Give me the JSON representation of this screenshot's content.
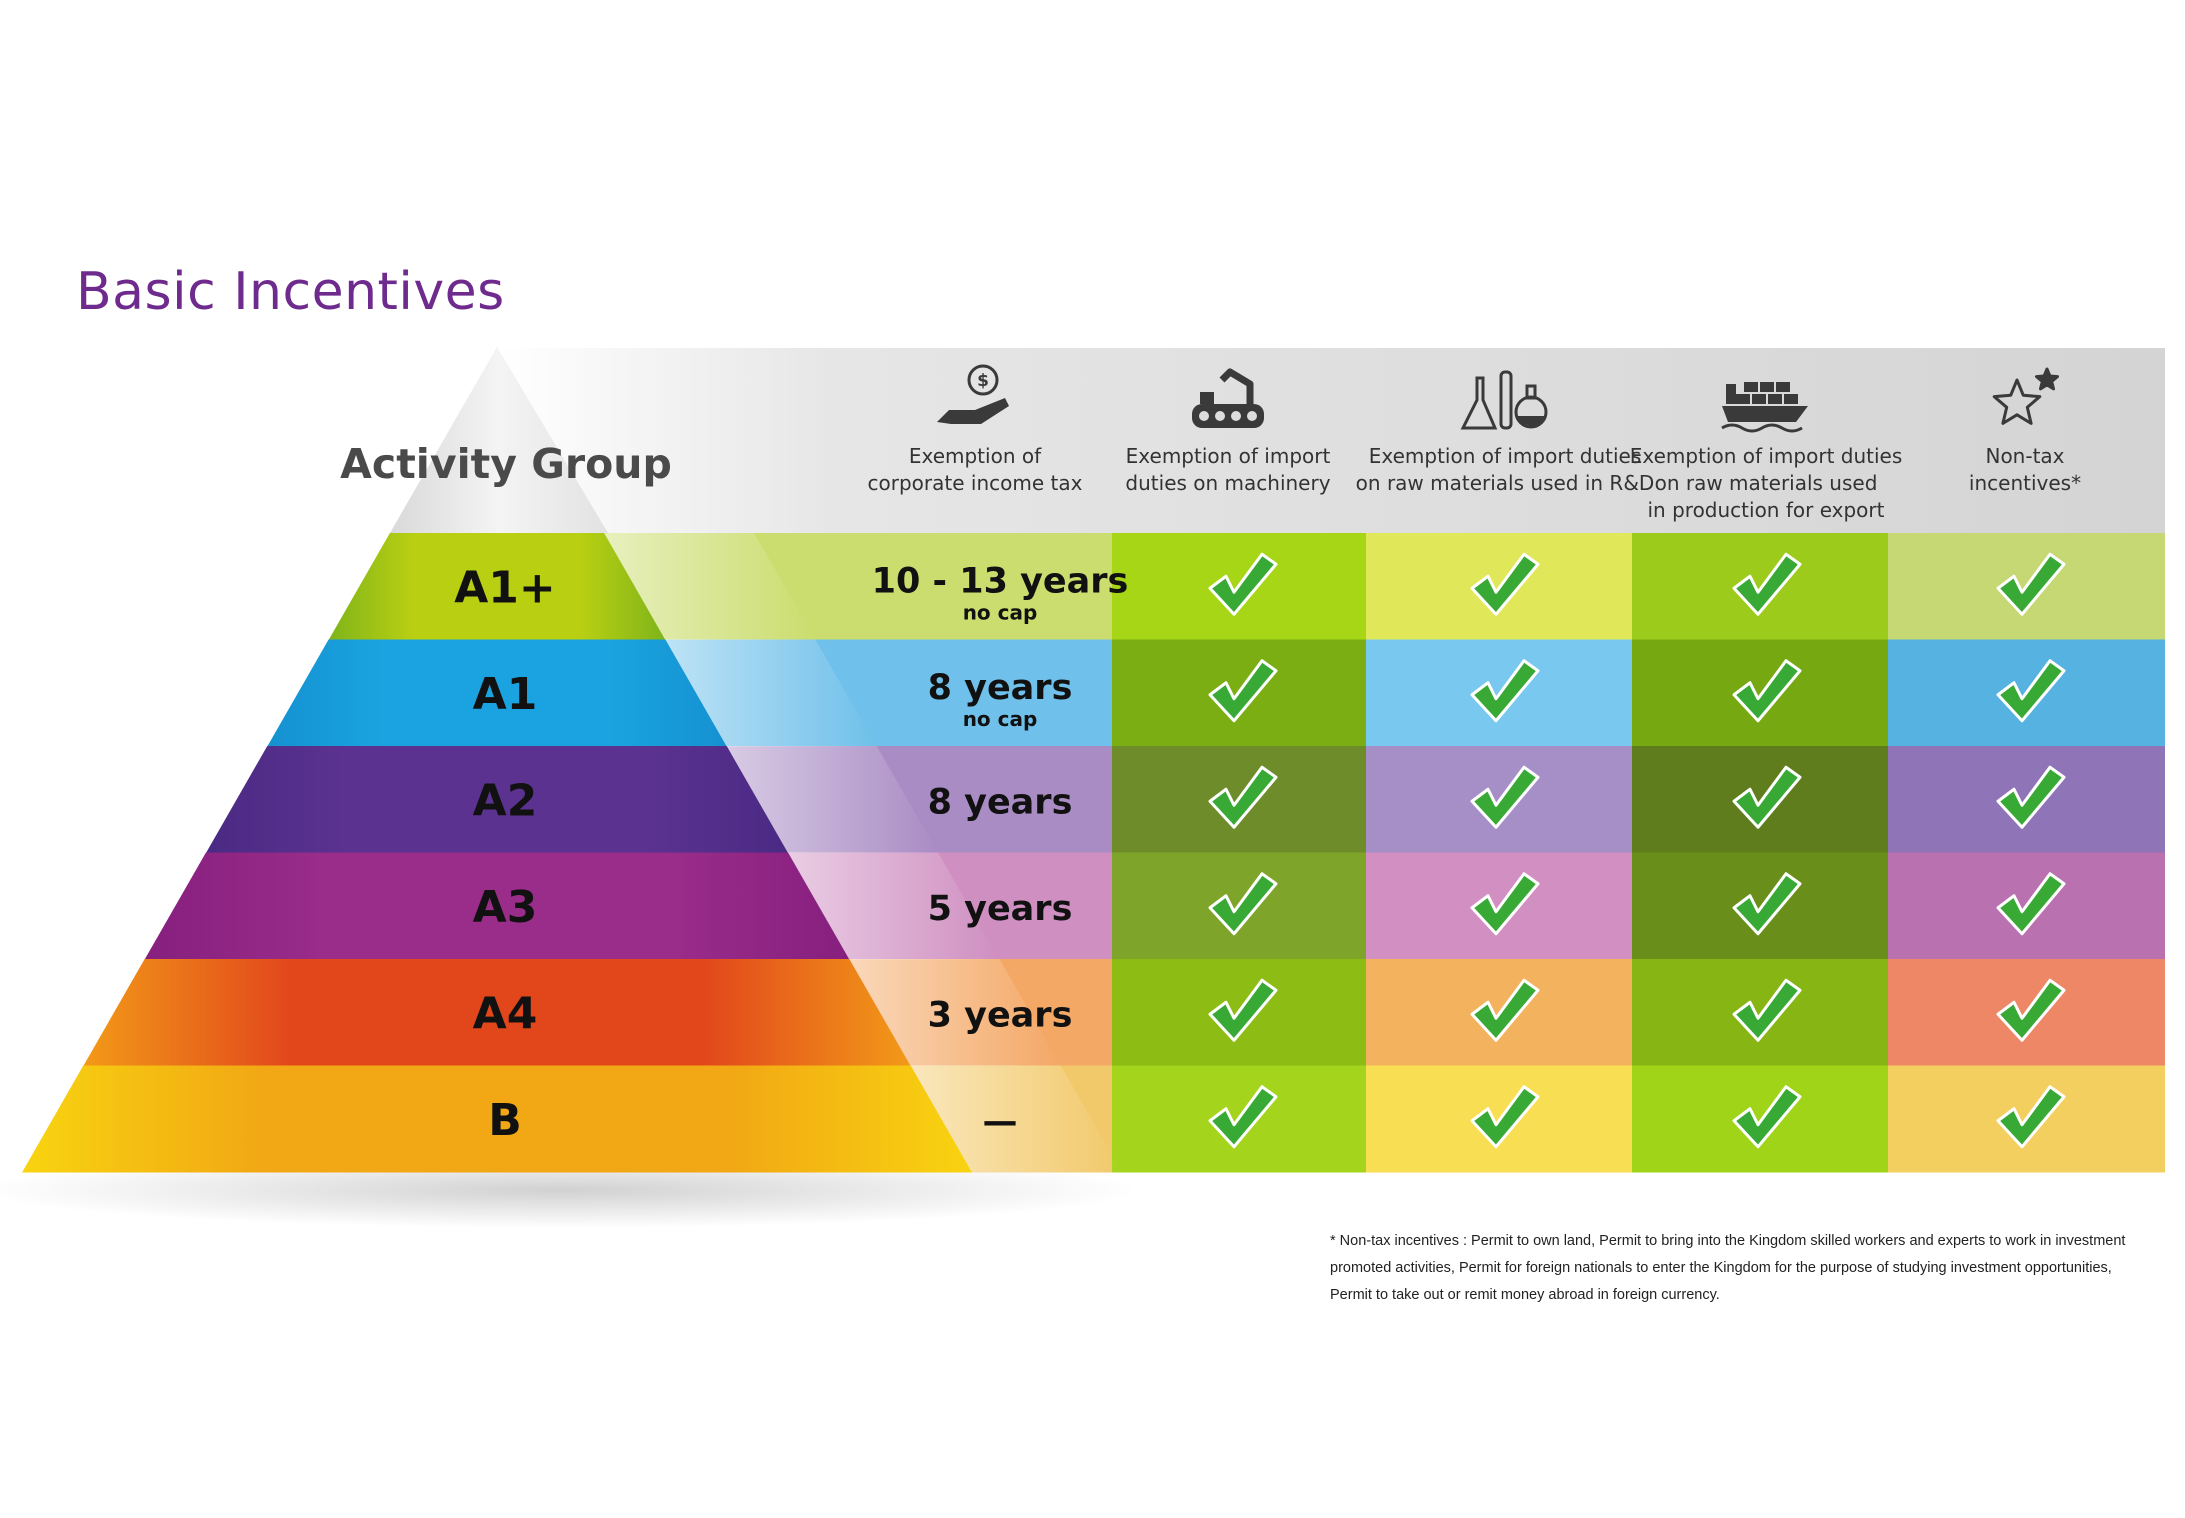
{
  "title": "Basic Incentives",
  "activity_group_label": "Activity Group",
  "columns": [
    {
      "icon": "money-hand-icon",
      "label_lines": [
        "Exemption of",
        "corporate income tax"
      ]
    },
    {
      "icon": "robot-conveyor-icon",
      "label_lines": [
        "Exemption of import",
        "duties on machinery"
      ]
    },
    {
      "icon": "lab-flask-icon",
      "label_lines": [
        "Exemption of import duties",
        "on raw materials used in R&D"
      ]
    },
    {
      "icon": "cargo-ship-icon",
      "label_lines": [
        "Exemption of import duties",
        "on raw materials used",
        "in production for export"
      ]
    },
    {
      "icon": "stars-icon",
      "label_lines": [
        "Non-tax",
        "incentives*"
      ]
    }
  ],
  "rows": [
    {
      "group": "A1+",
      "cit": "10 - 13 years",
      "cap": "no cap",
      "checks": [
        true,
        true,
        true,
        true
      ],
      "band_from": "#b9cf12",
      "band_to": "#7fb41a",
      "cell": "#cbdd6e",
      "mach": "#a6d616",
      "rnd": "#e0e85a",
      "exp": "#9ccb1c",
      "nontax": "#c5d873"
    },
    {
      "group": "A1",
      "cit": "8 years",
      "cap": "no cap",
      "checks": [
        true,
        true,
        true,
        true
      ],
      "band_from": "#1aa3e0",
      "band_to": "#1591d1",
      "cell": "#6fc0ea",
      "mach": "#7aae12",
      "rnd": "#79c8ef",
      "exp": "#76a812",
      "nontax": "#56b2e0"
    },
    {
      "group": "A2",
      "cit": "8 years",
      "cap": "",
      "checks": [
        true,
        true,
        true,
        true
      ],
      "band_from": "#5c3290",
      "band_to": "#4a2a84",
      "cell": "#a98cc4",
      "mach": "#6f8c2a",
      "rnd": "#a68fc6",
      "exp": "#5f7d1c",
      "nontax": "#8f74b8"
    },
    {
      "group": "A3",
      "cit": "5 years",
      "cap": "",
      "checks": [
        true,
        true,
        true,
        true
      ],
      "band_from": "#9a2c8a",
      "band_to": "#861f7e",
      "cell": "#cf8fc1",
      "mach": "#7fa42a",
      "rnd": "#d28fc2",
      "exp": "#6a8e1a",
      "nontax": "#b971b0"
    },
    {
      "group": "A4",
      "cit": "3 years",
      "cap": "",
      "checks": [
        true,
        true,
        true,
        true
      ],
      "band_from": "#e2471c",
      "band_to": "#f29a18",
      "cell": "#f4a866",
      "mach": "#8dbd14",
      "rnd": "#f3b25e",
      "exp": "#86b514",
      "nontax": "#ee8765"
    },
    {
      "group": "B",
      "cit": "—",
      "cap": "",
      "checks": [
        true,
        true,
        true,
        true
      ],
      "band_from": "#f2a814",
      "band_to": "#f8d410",
      "cell": "#f2c96a",
      "mach": "#a4d41c",
      "rnd": "#f8de52",
      "exp": "#a0d418",
      "nontax": "#f3cf60"
    }
  ],
  "footnote_lines": [
    "* Non-tax incentives : Permit to own land, Permit to bring into the Kingdom skilled workers and experts to work in investment",
    "promoted activities, Permit for foreign nationals to enter the Kingdom for the purpose of studying investment opportunities,",
    "Permit to take out or remit money abroad in foreign currency."
  ],
  "colors": {
    "title": "#6e2a8c",
    "check_fill": "#39a935",
    "check_outline": "#ffffff",
    "header_bg": "#d6d6d6",
    "icon": "#3a3a3a"
  }
}
